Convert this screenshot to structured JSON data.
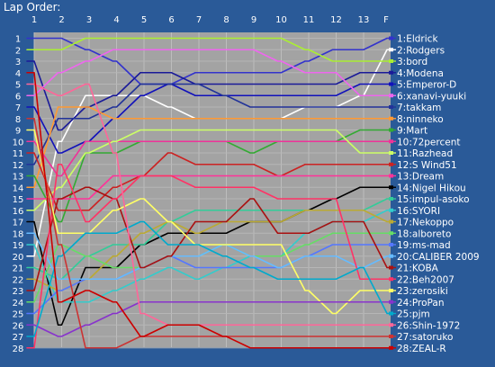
{
  "window": {
    "title": "Lap Order:"
  },
  "chart_data": {
    "type": "line",
    "title": "Lap Order:",
    "x": [
      "1",
      "2",
      "3",
      "4",
      "5",
      "6",
      "7",
      "8",
      "9",
      "10",
      "11",
      "12",
      "13",
      "F"
    ],
    "positions": [
      "1",
      "2",
      "3",
      "4",
      "5",
      "6",
      "7",
      "8",
      "9",
      "10",
      "11",
      "12",
      "13",
      "14",
      "15",
      "16",
      "17",
      "18",
      "19",
      "20",
      "21",
      "22",
      "23",
      "24",
      "25",
      "26",
      "27",
      "28"
    ],
    "grid": true,
    "legend": "right",
    "drivers": [
      {
        "label": "1:Eldrick",
        "color": "#3333cc",
        "lap1": 1,
        "values": [
          1,
          1,
          2,
          3,
          5,
          5,
          4,
          4,
          4,
          4,
          3,
          2,
          2,
          1
        ]
      },
      {
        "label": "2:Rodgers",
        "color": "#ffffff",
        "lap1": 20,
        "values": [
          20,
          10,
          6,
          6,
          6,
          7,
          8,
          8,
          8,
          8,
          7,
          7,
          6,
          2
        ]
      },
      {
        "label": "3:bord",
        "color": "#aaee33",
        "lap1": 2,
        "values": [
          2,
          2,
          1,
          1,
          1,
          1,
          1,
          1,
          1,
          1,
          2,
          3,
          3,
          3
        ]
      },
      {
        "label": "4:Modena",
        "color": "#1a1a99",
        "lap1": 3,
        "values": [
          3,
          9,
          7,
          6,
          4,
          4,
          5,
          5,
          5,
          5,
          5,
          5,
          4,
          4
        ]
      },
      {
        "label": "5:Emperor-D",
        "color": "#1111bb",
        "lap1": 7,
        "values": [
          7,
          11,
          10,
          8,
          6,
          5,
          6,
          6,
          6,
          6,
          6,
          6,
          5,
          5
        ]
      },
      {
        "label": "6:xanavi-yuuki",
        "color": "#ee66ee",
        "lap1": 6,
        "values": [
          6,
          4,
          3,
          2,
          2,
          2,
          2,
          2,
          2,
          3,
          4,
          4,
          6,
          6
        ]
      },
      {
        "label": "7:takkam",
        "color": "#223399",
        "lap1": 12,
        "values": [
          12,
          8,
          8,
          7,
          5,
          5,
          5,
          6,
          7,
          7,
          7,
          7,
          7,
          7
        ]
      },
      {
        "label": "8:ninneko",
        "color": "#ff9933",
        "lap1": 14,
        "values": [
          14,
          7,
          7,
          8,
          8,
          8,
          8,
          8,
          8,
          8,
          8,
          8,
          8,
          8
        ]
      },
      {
        "label": "9:Mart",
        "color": "#33aa33",
        "lap1": 13,
        "values": [
          13,
          17,
          11,
          11,
          10,
          10,
          10,
          10,
          11,
          10,
          10,
          10,
          9,
          9
        ]
      },
      {
        "label": "10:72percent",
        "color": "#ee3399",
        "lap1": 10,
        "values": [
          10,
          13,
          10,
          10,
          10,
          10,
          10,
          10,
          10,
          10,
          10,
          10,
          10,
          10
        ]
      },
      {
        "label": "11:Razhead",
        "color": "#ccff66",
        "lap1": 16,
        "values": [
          16,
          14,
          11,
          10,
          9,
          9,
          9,
          9,
          9,
          9,
          9,
          9,
          11,
          11
        ]
      },
      {
        "label": "12:S Wind51",
        "color": "#cc2222",
        "lap1": 11,
        "values": [
          11,
          16,
          16,
          14,
          13,
          11,
          12,
          12,
          12,
          13,
          12,
          12,
          12,
          12
        ]
      },
      {
        "label": "13:Dream",
        "color": "#ff3399",
        "lap1": 15,
        "values": [
          15,
          15,
          15,
          13,
          13,
          13,
          13,
          13,
          13,
          13,
          13,
          13,
          13,
          13
        ]
      },
      {
        "label": "14:Nigel Hikou",
        "color": "#000000",
        "lap1": 17,
        "values": [
          17,
          26,
          21,
          21,
          19,
          18,
          18,
          18,
          17,
          17,
          16,
          15,
          14,
          14
        ]
      },
      {
        "label": "15:impul-asoko",
        "color": "#33cc99",
        "lap1": 21,
        "values": [
          21,
          22,
          20,
          19,
          19,
          17,
          16,
          16,
          16,
          16,
          16,
          16,
          16,
          15
        ]
      },
      {
        "label": "16:SYORI",
        "color": "#33cccc",
        "lap1": 19,
        "values": [
          19,
          24,
          24,
          23,
          22,
          21,
          22,
          21,
          20,
          20,
          18,
          17,
          17,
          16
        ]
      },
      {
        "label": "17:Nekoppo",
        "color": "#bbaa33",
        "lap1": 22,
        "values": [
          22,
          23,
          22,
          20,
          18,
          17,
          18,
          17,
          17,
          17,
          16,
          16,
          16,
          17
        ]
      },
      {
        "label": "18:alboreto",
        "color": "#66dd66",
        "lap1": 24,
        "values": [
          24,
          19,
          20,
          21,
          21,
          20,
          20,
          19,
          20,
          20,
          19,
          18,
          18,
          18
        ]
      },
      {
        "label": "19:ms-mad",
        "color": "#5577ff",
        "lap1": 25,
        "values": [
          25,
          23,
          22,
          22,
          21,
          20,
          21,
          21,
          21,
          21,
          20,
          19,
          19,
          19
        ]
      },
      {
        "label": "20:CALIBER 2009",
        "color": "#66bbff",
        "lap1": 18,
        "values": [
          18,
          22,
          22,
          22,
          21,
          20,
          20,
          19,
          20,
          21,
          20,
          20,
          21,
          20
        ]
      },
      {
        "label": "21:KOBA",
        "color": "#aa1111",
        "lap1": 23,
        "values": [
          23,
          15,
          14,
          15,
          21,
          20,
          17,
          17,
          15,
          18,
          18,
          17,
          17,
          21
        ]
      },
      {
        "label": "22:Beh2007",
        "color": "#ff3366",
        "lap1": 28,
        "values": [
          28,
          12,
          17,
          15,
          13,
          13,
          14,
          14,
          14,
          15,
          15,
          15,
          22,
          22
        ]
      },
      {
        "label": "23:zerosiki",
        "color": "#ffff66",
        "lap1": 9,
        "values": [
          9,
          18,
          18,
          16,
          15,
          17,
          19,
          19,
          19,
          19,
          23,
          25,
          23,
          23
        ]
      },
      {
        "label": "24:ProPan",
        "color": "#8833cc",
        "lap1": 26,
        "values": [
          26,
          27,
          26,
          25,
          24,
          24,
          24,
          24,
          24,
          24,
          24,
          24,
          24,
          24
        ]
      },
      {
        "label": "25:pjm",
        "color": "#00aacc",
        "lap1": 27,
        "values": [
          27,
          20,
          18,
          18,
          17,
          19,
          19,
          20,
          21,
          22,
          22,
          22,
          21,
          25
        ]
      },
      {
        "label": "26:Shin-1972",
        "color": "#ff6699",
        "lap1": 5,
        "values": [
          5,
          6,
          5,
          11,
          25,
          26,
          26,
          26,
          26,
          26,
          26,
          26,
          26,
          26
        ]
      },
      {
        "label": "27:satoruko",
        "color": "#cc3333",
        "lap1": 8,
        "values": [
          8,
          19,
          28,
          28,
          27,
          27,
          27,
          27,
          27,
          27,
          27,
          27,
          27,
          27
        ]
      },
      {
        "label": "28:ZEAL-R",
        "color": "#cc0000",
        "lap1": 4,
        "values": [
          4,
          24,
          23,
          24,
          27,
          26,
          26,
          27,
          28,
          28,
          28,
          28,
          28,
          28
        ]
      }
    ]
  }
}
